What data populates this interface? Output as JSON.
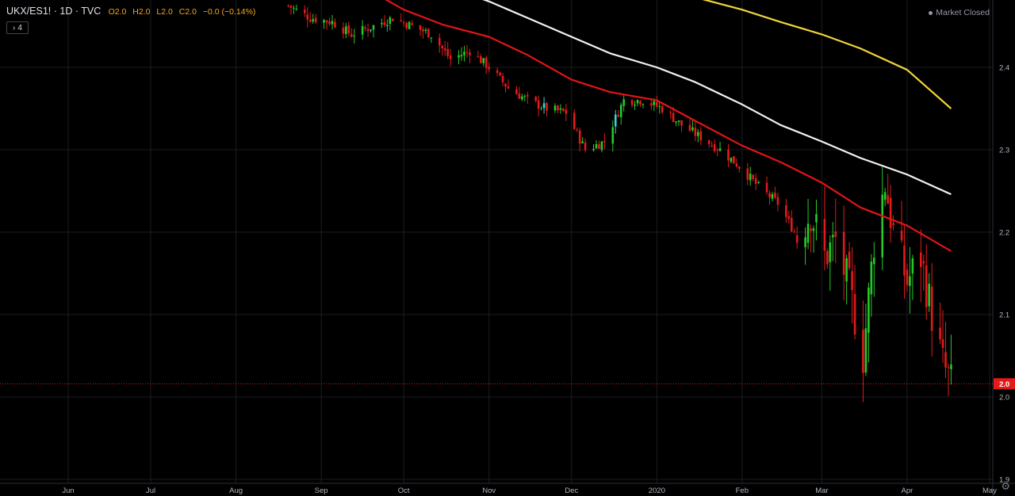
{
  "header": {
    "symbol": "UKX/ES1! · 1D · TVC",
    "open": "O2.0",
    "high": "H2.0",
    "low": "L2.0",
    "close": "C2.0",
    "change": "−0.0 (−0.14%)",
    "indicator_count": "4"
  },
  "status": {
    "text": "Market Closed"
  },
  "colors": {
    "up": "#26c929",
    "down": "#e31a1a",
    "up_alt": "#32d6e0",
    "ma_red": "#e01515",
    "ma_white": "#f2f2f2",
    "ma_yellow": "#f2d43a",
    "price_line": "#e31a1a",
    "grid": "#1b1d24"
  },
  "chart_data": {
    "type": "candlestick",
    "title": "",
    "ylim": [
      1.9,
      2.48
    ],
    "y_ticks": [
      "1.9",
      "2.0",
      "2.1",
      "2.2",
      "2.3",
      "2.4"
    ],
    "x_ticks": [
      {
        "label": "Jun",
        "date": "2019-06-01"
      },
      {
        "label": "Jul",
        "date": "2019-07-01"
      },
      {
        "label": "Aug",
        "date": "2019-08-01"
      },
      {
        "label": "Sep",
        "date": "2019-09-01"
      },
      {
        "label": "Oct",
        "date": "2019-10-01"
      },
      {
        "label": "Nov",
        "date": "2019-11-01"
      },
      {
        "label": "Dec",
        "date": "2019-12-01"
      },
      {
        "label": "2020",
        "date": "2020-01-01"
      },
      {
        "label": "Feb",
        "date": "2020-02-01"
      },
      {
        "label": "Mar",
        "date": "2020-03-01"
      },
      {
        "label": "Apr",
        "date": "2020-04-01"
      },
      {
        "label": "May",
        "date": "2020-05-01"
      }
    ],
    "last_price": "2.0",
    "last_value": 2.016,
    "price_curve": [
      [
        "2019-08-20",
        2.475
      ],
      [
        "2019-08-28",
        2.46
      ],
      [
        "2019-09-05",
        2.455
      ],
      [
        "2019-09-12",
        2.44
      ],
      [
        "2019-09-20",
        2.45
      ],
      [
        "2019-09-27",
        2.46
      ],
      [
        "2019-10-04",
        2.45
      ],
      [
        "2019-10-11",
        2.44
      ],
      [
        "2019-10-18",
        2.41
      ],
      [
        "2019-10-25",
        2.42
      ],
      [
        "2019-11-01",
        2.4
      ],
      [
        "2019-11-08",
        2.375
      ],
      [
        "2019-11-15",
        2.36
      ],
      [
        "2019-11-22",
        2.35
      ],
      [
        "2019-11-29",
        2.345
      ],
      [
        "2019-12-06",
        2.3
      ],
      [
        "2019-12-13",
        2.31
      ],
      [
        "2019-12-20",
        2.36
      ],
      [
        "2019-12-27",
        2.36
      ],
      [
        "2020-01-03",
        2.35
      ],
      [
        "2020-01-10",
        2.33
      ],
      [
        "2020-01-17",
        2.315
      ],
      [
        "2020-01-24",
        2.3
      ],
      [
        "2020-01-31",
        2.28
      ],
      [
        "2020-02-07",
        2.255
      ],
      [
        "2020-02-14",
        2.235
      ],
      [
        "2020-02-21",
        2.195
      ],
      [
        "2020-02-26",
        2.225
      ],
      [
        "2020-03-02",
        2.17
      ],
      [
        "2020-03-06",
        2.19
      ],
      [
        "2020-03-11",
        2.13
      ],
      [
        "2020-03-16",
        2.05
      ],
      [
        "2020-03-20",
        2.19
      ],
      [
        "2020-03-24",
        2.26
      ],
      [
        "2020-03-27",
        2.2
      ],
      [
        "2020-04-01",
        2.14
      ],
      [
        "2020-04-06",
        2.17
      ],
      [
        "2020-04-10",
        2.1
      ],
      [
        "2020-04-14",
        2.04
      ],
      [
        "2020-04-17",
        2.016
      ]
    ],
    "series": [
      {
        "values": [
          [
            "2019-09-15",
            2.5
          ],
          [
            "2019-10-01",
            2.47
          ],
          [
            "2019-10-15",
            2.452
          ],
          [
            "2019-11-01",
            2.437
          ],
          [
            "2019-11-15",
            2.415
          ],
          [
            "2019-12-01",
            2.385
          ],
          [
            "2019-12-15",
            2.37
          ],
          [
            "2020-01-01",
            2.36
          ],
          [
            "2020-01-15",
            2.335
          ],
          [
            "2020-02-01",
            2.305
          ],
          [
            "2020-02-15",
            2.285
          ],
          [
            "2020-03-01",
            2.26
          ],
          [
            "2020-03-15",
            2.23
          ],
          [
            "2020-04-01",
            2.208
          ],
          [
            "2020-04-17",
            2.177
          ]
        ]
      },
      {
        "values": [
          [
            "2019-10-01",
            2.515
          ],
          [
            "2019-10-15",
            2.5
          ],
          [
            "2019-11-01",
            2.48
          ],
          [
            "2019-11-15",
            2.46
          ],
          [
            "2019-12-01",
            2.437
          ],
          [
            "2019-12-15",
            2.417
          ],
          [
            "2020-01-01",
            2.4
          ],
          [
            "2020-01-15",
            2.382
          ],
          [
            "2020-02-01",
            2.355
          ],
          [
            "2020-02-15",
            2.33
          ],
          [
            "2020-03-01",
            2.31
          ],
          [
            "2020-03-15",
            2.29
          ],
          [
            "2020-04-01",
            2.27
          ],
          [
            "2020-04-17",
            2.246
          ]
        ]
      },
      {
        "values": [
          [
            "2019-12-15",
            2.51
          ],
          [
            "2020-01-01",
            2.497
          ],
          [
            "2020-01-15",
            2.485
          ],
          [
            "2020-02-01",
            2.47
          ],
          [
            "2020-02-15",
            2.455
          ],
          [
            "2020-03-01",
            2.44
          ],
          [
            "2020-03-15",
            2.423
          ],
          [
            "2020-04-01",
            2.397
          ],
          [
            "2020-04-17",
            2.35
          ]
        ]
      }
    ]
  }
}
